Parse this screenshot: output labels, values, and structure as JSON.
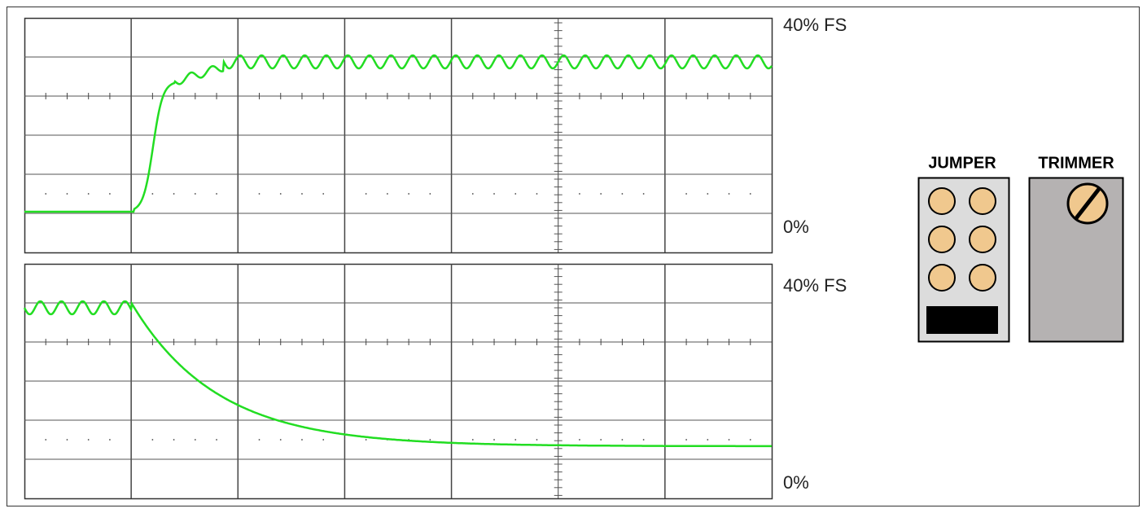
{
  "scopes": [
    {
      "top_label": "40% FS",
      "bottom_label": "0%"
    },
    {
      "top_label": "40% FS",
      "bottom_label": "0%"
    }
  ],
  "jumper": {
    "label": "JUMPER"
  },
  "trimmer": {
    "label": "TRIMMER"
  }
}
